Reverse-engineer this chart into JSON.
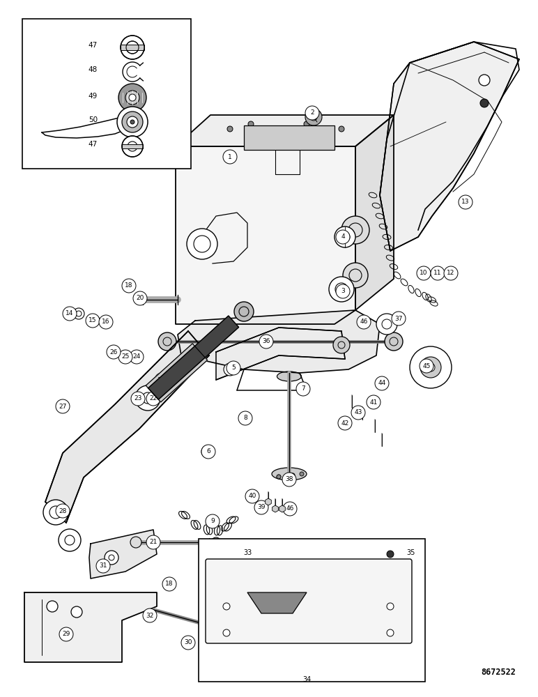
{
  "part_number": "8672522",
  "background_color": "#ffffff",
  "line_color": "#000000",
  "fig_width": 7.72,
  "fig_height": 10.0,
  "dpi": 100
}
